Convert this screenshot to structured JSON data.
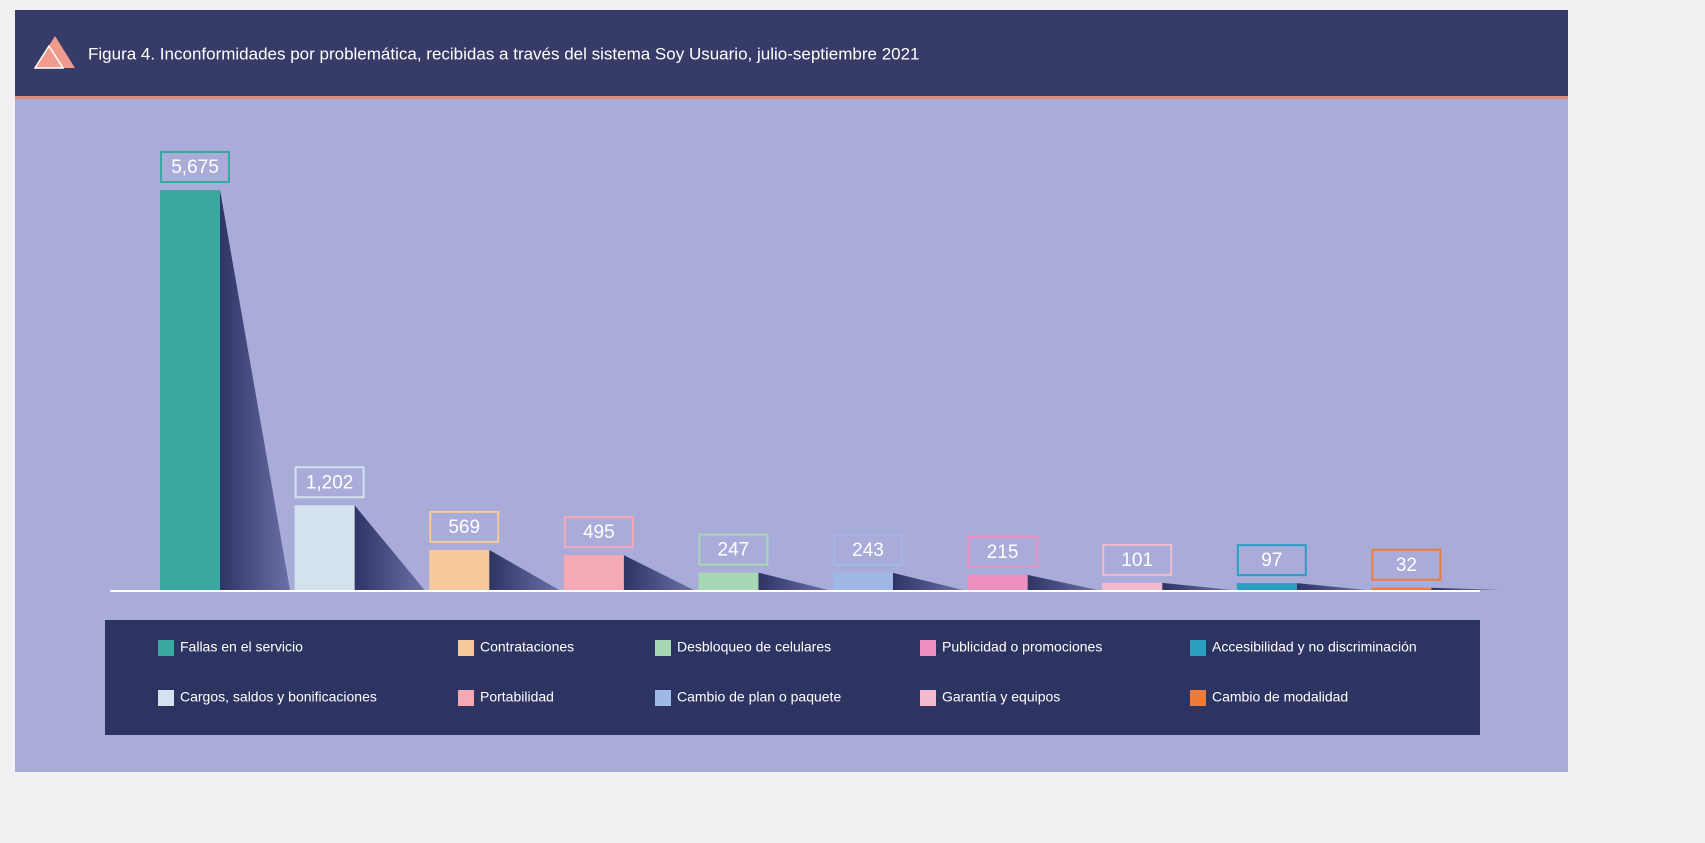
{
  "chart_data": {
    "type": "bar",
    "title": "Figura 4. Inconformidades por problemática, recibidas a través del sistema Soy Usuario, julio-septiembre 2021",
    "categories": [
      "Fallas en el servicio",
      "Cargos, saldos y bonificaciones",
      "Contrataciones",
      "Portabilidad",
      "Desbloqueo de celulares",
      "Cambio de plan o paquete",
      "Publicidad o promociones",
      "Garantía y equipos",
      "Accesibilidad y no discriminación",
      "Cambio de modalidad"
    ],
    "values": [
      5675,
      1202,
      569,
      495,
      247,
      243,
      215,
      101,
      97,
      32
    ],
    "value_labels": [
      "5,675",
      "1,202",
      "569",
      "495",
      "247",
      "243",
      "215",
      "101",
      "97",
      "32"
    ],
    "colors": [
      "#3aa89f",
      "#d4e2ef",
      "#f7c99a",
      "#f4a9b4",
      "#a6d8b4",
      "#9fb8e6",
      "#ee8fc2",
      "#f2b9cf",
      "#2a9fc0",
      "#ef7b3a"
    ]
  }
}
